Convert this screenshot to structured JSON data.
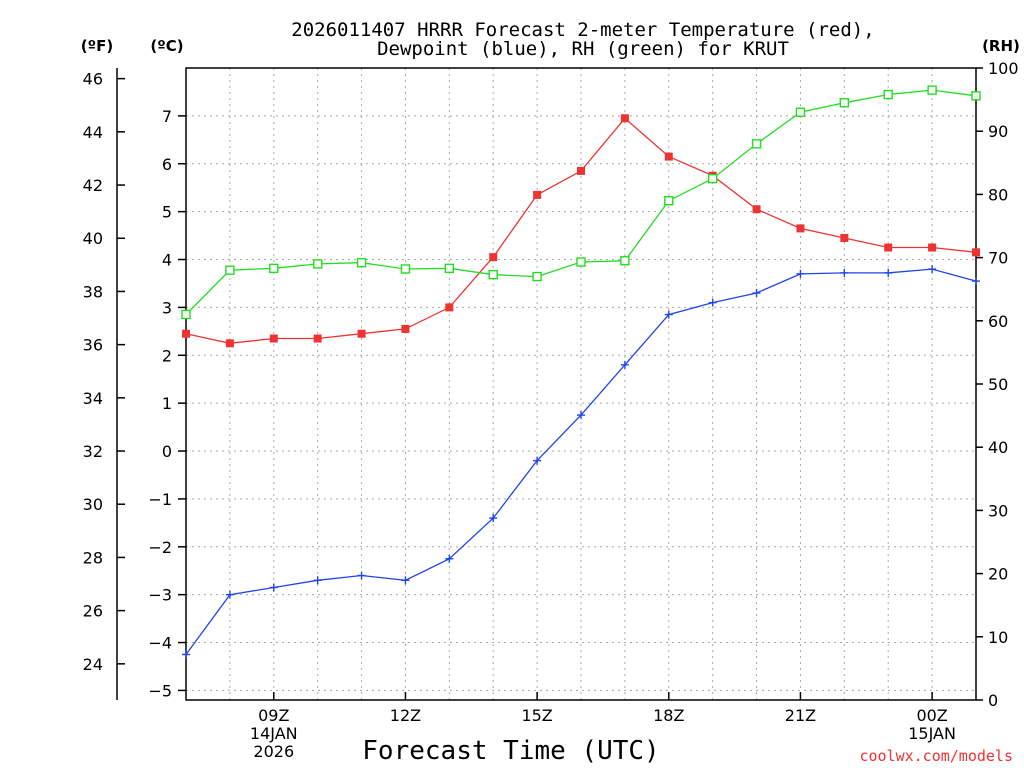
{
  "chart_data": {
    "type": "line",
    "title_lines": [
      "2026011407 HRRR Forecast 2-meter Temperature (red),",
      "Dewpoint (blue), RH (green) for KRUT"
    ],
    "xlabel": "Forecast Time (UTC)",
    "credit": "coolwx.com/models",
    "units": {
      "fahrenheit": "(ºF)",
      "celsius": "(ºC)",
      "rh": "(RH)"
    },
    "x_hours": [
      7,
      8,
      9,
      10,
      11,
      12,
      13,
      14,
      15,
      16,
      17,
      18,
      19,
      20,
      21,
      22,
      23,
      24,
      25
    ],
    "x_range": [
      7,
      25
    ],
    "x_ticks": [
      {
        "hour": 9,
        "lines": [
          "09Z",
          "14JAN",
          "2026"
        ]
      },
      {
        "hour": 12,
        "lines": [
          "12Z"
        ]
      },
      {
        "hour": 15,
        "lines": [
          "15Z"
        ]
      },
      {
        "hour": 18,
        "lines": [
          "18Z"
        ]
      },
      {
        "hour": 21,
        "lines": [
          "21Z"
        ]
      },
      {
        "hour": 24,
        "lines": [
          "00Z",
          "15JAN"
        ]
      }
    ],
    "celsius_range": [
      -5.2,
      8.0
    ],
    "celsius_ticks": [
      "-5",
      "-4",
      "-3",
      "-2",
      "-1",
      "0",
      "1",
      "2",
      "3",
      "4",
      "5",
      "6",
      "7"
    ],
    "fahrenheit_ticks": [
      "24",
      "26",
      "28",
      "30",
      "32",
      "34",
      "36",
      "38",
      "40",
      "42",
      "44",
      "46"
    ],
    "rh_range": [
      0,
      100
    ],
    "rh_ticks": [
      "0",
      "10",
      "20",
      "30",
      "40",
      "50",
      "60",
      "70",
      "80",
      "90",
      "100"
    ],
    "series": [
      {
        "name": "Temperature",
        "axis": "celsius",
        "color": "#ee3333",
        "marker": "filled-square",
        "values": [
          2.45,
          2.25,
          2.35,
          2.35,
          2.45,
          2.55,
          3.0,
          4.05,
          5.35,
          5.85,
          6.95,
          6.15,
          5.75,
          5.05,
          4.65,
          4.45,
          4.25,
          4.25,
          4.15
        ]
      },
      {
        "name": "Dewpoint",
        "axis": "celsius",
        "color": "#2244ee",
        "marker": "plus",
        "values": [
          -4.25,
          -3.0,
          -2.85,
          -2.7,
          -2.6,
          -2.7,
          -2.25,
          -1.4,
          -0.2,
          0.75,
          1.8,
          2.85,
          3.1,
          3.3,
          3.7,
          3.72,
          3.72,
          3.8,
          3.55
        ]
      },
      {
        "name": "RH",
        "axis": "rh",
        "color": "#22dd22",
        "marker": "open-square",
        "values": [
          61,
          68,
          68.3,
          69,
          69.2,
          68.2,
          68.3,
          67.3,
          67,
          69.3,
          69.5,
          79,
          82.5,
          88,
          93,
          94.5,
          95.8,
          96.5,
          95.6
        ]
      }
    ]
  }
}
